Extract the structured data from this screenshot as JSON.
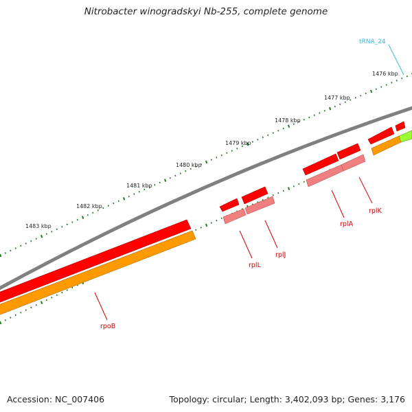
{
  "title": "Nitrobacter winogradskyi Nb-255, complete genome",
  "footer": {
    "accession": "Accession: NC_007406",
    "topology": "Topology: circular; Length: 3,402,093 bp; Genes: 3,176"
  },
  "ruler_labels": [
    "1476 kbp",
    "1477 kbp",
    "1478 kbp",
    "1479 kbp",
    "1480 kbp",
    "1481 kbp",
    "1482 kbp",
    "1483 kbp"
  ],
  "colors": {
    "backbone": "#808080",
    "cds": "#ff0000",
    "cds_light": "#f08080",
    "gene": "#ff9900",
    "trna": "#99ff33",
    "tick": "#1f7a1f",
    "label_red": "#d00000",
    "label_cyan": "#3bb8d8"
  },
  "features": [
    {
      "name": "rpoB",
      "type": "gene"
    },
    {
      "name": "rplL",
      "type": "CDS"
    },
    {
      "name": "rplJ",
      "type": "CDS"
    },
    {
      "name": "rplA",
      "type": "CDS"
    },
    {
      "name": "rplK",
      "type": "CDS"
    },
    {
      "name": "tRNA_24",
      "type": "tRNA"
    }
  ]
}
